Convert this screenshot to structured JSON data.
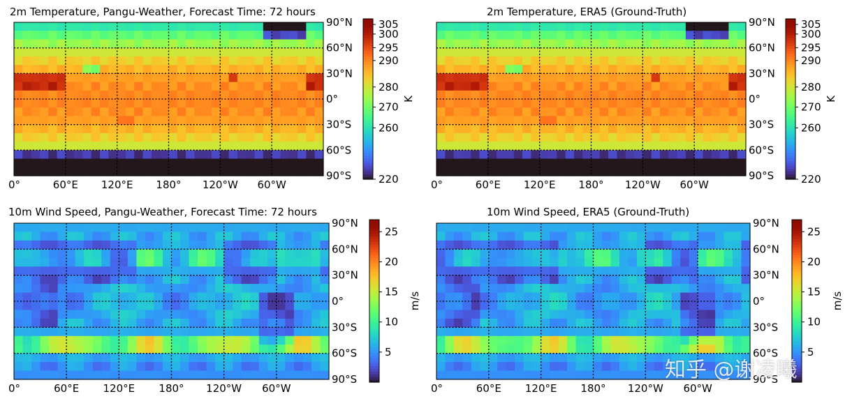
{
  "chart_data": [
    {
      "type": "heatmap",
      "title": "2m Temperature, Pangu-Weather, Forecast Time: 72 hours",
      "variable": "temperature",
      "x_ticks": [
        "0°",
        "60°E",
        "120°E",
        "180°",
        "120°W",
        "60°W"
      ],
      "y_ticks": [
        "90°N",
        "60°N",
        "30°N",
        "0°",
        "30°S",
        "60°S",
        "90°S"
      ],
      "colorbar": {
        "label": "K",
        "ticks": [
          220,
          260,
          270,
          280,
          290,
          295,
          300,
          305
        ],
        "range": [
          220,
          310
        ],
        "scale": "nonlinear"
      },
      "grid": true,
      "colormap": "turbo"
    },
    {
      "type": "heatmap",
      "title": "2m Temperature, ERA5 (Ground-Truth)",
      "variable": "temperature",
      "x_ticks": [
        "0°",
        "60°E",
        "120°E",
        "180°",
        "120°W",
        "60°W"
      ],
      "y_ticks": [
        "90°N",
        "60°N",
        "30°N",
        "0°",
        "30°S",
        "60°S",
        "90°S"
      ],
      "colorbar": {
        "label": "K",
        "ticks": [
          220,
          260,
          270,
          280,
          290,
          295,
          300,
          305
        ],
        "range": [
          220,
          310
        ],
        "scale": "nonlinear"
      },
      "grid": true,
      "colormap": "turbo"
    },
    {
      "type": "heatmap",
      "title": "10m Wind Speed, Pangu-Weather, Forecast Time: 72 hours",
      "variable": "wind",
      "x_ticks": [
        "0°",
        "60°E",
        "120°E",
        "180°",
        "120°W",
        "60°W"
      ],
      "y_ticks": [
        "90°N",
        "60°N",
        "30°N",
        "0°",
        "30°S",
        "60°S",
        "90°S"
      ],
      "colorbar": {
        "label": "m/s",
        "ticks": [
          5,
          10,
          15,
          20,
          25
        ],
        "range": [
          0,
          27
        ],
        "scale": "linear"
      },
      "grid": true,
      "colormap": "turbo"
    },
    {
      "type": "heatmap",
      "title": "10m Wind Speed, ERA5 (Ground-Truth)",
      "variable": "wind",
      "x_ticks": [
        "0°",
        "60°E",
        "120°E",
        "180°",
        "120°W",
        "60°W"
      ],
      "y_ticks": [
        "90°N",
        "60°N",
        "30°N",
        "0°",
        "30°S",
        "60°S",
        "90°S"
      ],
      "colorbar": {
        "label": "m/s",
        "ticks": [
          5,
          10,
          15,
          20,
          25
        ],
        "range": [
          0,
          27
        ],
        "scale": "linear"
      },
      "grid": true,
      "colormap": "turbo"
    }
  ],
  "watermark": "知乎 @谢凌曦"
}
